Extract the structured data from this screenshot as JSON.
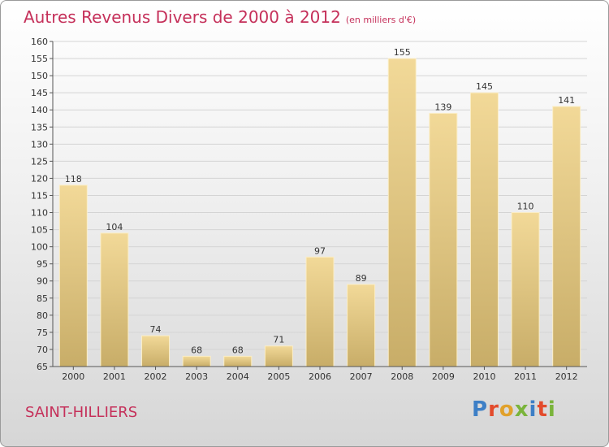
{
  "header": {
    "title": "Autres Revenus Divers de 2000 à 2012",
    "subtitle": "(en milliers d'€)"
  },
  "location": "SAINT-HILLIERS",
  "brand": {
    "letters": [
      "P",
      "r",
      "o",
      "x",
      "i",
      "t",
      "i"
    ]
  },
  "colors": {
    "title": "#c5305a",
    "bar_light": "#f2d998",
    "bar_dark": "#c8ad68",
    "grid": "#d4d4d4",
    "axis": "#555555"
  },
  "chart_data": {
    "type": "bar",
    "categories": [
      "2000",
      "2001",
      "2002",
      "2003",
      "2004",
      "2005",
      "2006",
      "2007",
      "2008",
      "2009",
      "2010",
      "2011",
      "2012"
    ],
    "values": [
      118,
      104,
      74,
      68,
      68,
      71,
      97,
      89,
      155,
      139,
      145,
      110,
      141
    ],
    "ylim": [
      65,
      160
    ],
    "ytick_step": 5,
    "yticks": [
      65,
      70,
      75,
      80,
      85,
      90,
      95,
      100,
      105,
      110,
      115,
      120,
      125,
      130,
      135,
      140,
      145,
      150,
      155,
      160
    ],
    "grid": true,
    "data_labels": true
  }
}
